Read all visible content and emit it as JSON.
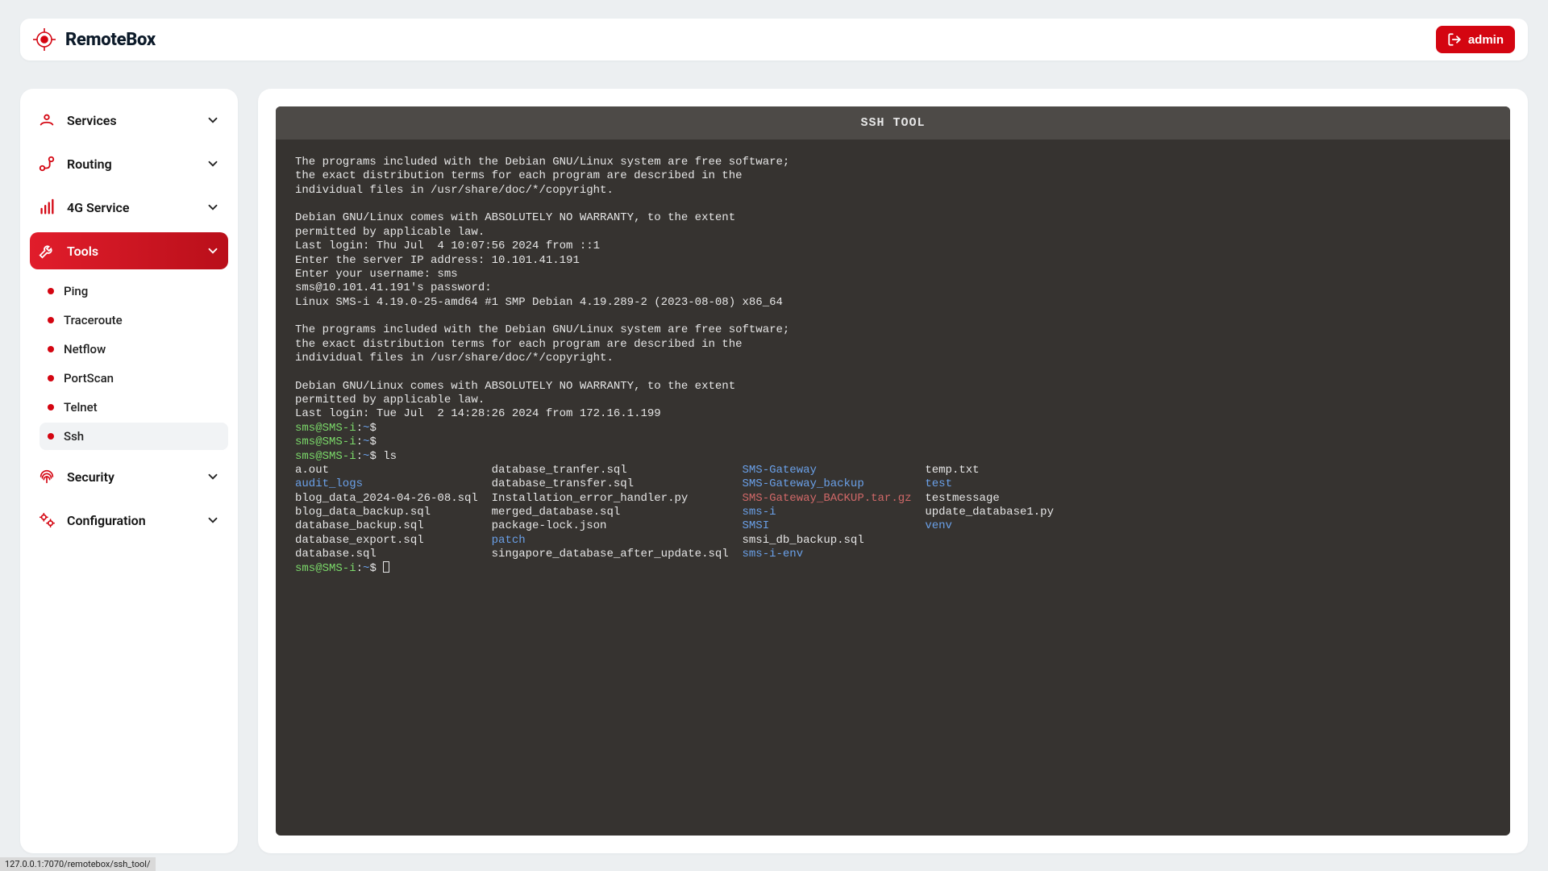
{
  "brand": {
    "name": "RemoteBox"
  },
  "header": {
    "admin_label": "admin"
  },
  "sidebar": {
    "items": [
      {
        "label": "Services"
      },
      {
        "label": "Routing"
      },
      {
        "label": "4G Service"
      },
      {
        "label": "Tools"
      },
      {
        "label": "Security"
      },
      {
        "label": "Configuration"
      }
    ],
    "tools_children": [
      {
        "label": "Ping"
      },
      {
        "label": "Traceroute"
      },
      {
        "label": "Netflow"
      },
      {
        "label": "PortScan"
      },
      {
        "label": "Telnet"
      },
      {
        "label": "Ssh"
      }
    ]
  },
  "terminal": {
    "title": "SSH TOOL",
    "lines": [
      [
        {
          "c": "default",
          "t": "The programs included with the Debian GNU/Linux system are free software;"
        }
      ],
      [
        {
          "c": "default",
          "t": "the exact distribution terms for each program are described in the"
        }
      ],
      [
        {
          "c": "default",
          "t": "individual files in /usr/share/doc/*/copyright."
        }
      ],
      [
        {
          "c": "default",
          "t": ""
        }
      ],
      [
        {
          "c": "default",
          "t": "Debian GNU/Linux comes with ABSOLUTELY NO WARRANTY, to the extent"
        }
      ],
      [
        {
          "c": "default",
          "t": "permitted by applicable law."
        }
      ],
      [
        {
          "c": "default",
          "t": "Last login: Thu Jul  4 10:07:56 2024 from ::1"
        }
      ],
      [
        {
          "c": "default",
          "t": "Enter the server IP address: 10.101.41.191"
        }
      ],
      [
        {
          "c": "default",
          "t": "Enter your username: sms"
        }
      ],
      [
        {
          "c": "default",
          "t": "sms@10.101.41.191's password:"
        }
      ],
      [
        {
          "c": "default",
          "t": "Linux SMS-i 4.19.0-25-amd64 #1 SMP Debian 4.19.289-2 (2023-08-08) x86_64"
        }
      ],
      [
        {
          "c": "default",
          "t": ""
        }
      ],
      [
        {
          "c": "default",
          "t": "The programs included with the Debian GNU/Linux system are free software;"
        }
      ],
      [
        {
          "c": "default",
          "t": "the exact distribution terms for each program are described in the"
        }
      ],
      [
        {
          "c": "default",
          "t": "individual files in /usr/share/doc/*/copyright."
        }
      ],
      [
        {
          "c": "default",
          "t": ""
        }
      ],
      [
        {
          "c": "default",
          "t": "Debian GNU/Linux comes with ABSOLUTELY NO WARRANTY, to the extent"
        }
      ],
      [
        {
          "c": "default",
          "t": "permitted by applicable law."
        }
      ],
      [
        {
          "c": "default",
          "t": "Last login: Tue Jul  2 14:28:26 2024 from 172.16.1.199"
        }
      ],
      [
        {
          "c": "green",
          "t": "sms@SMS-i"
        },
        {
          "c": "default",
          "t": ":"
        },
        {
          "c": "blue",
          "t": "~"
        },
        {
          "c": "default",
          "t": "$"
        }
      ],
      [
        {
          "c": "green",
          "t": "sms@SMS-i"
        },
        {
          "c": "default",
          "t": ":"
        },
        {
          "c": "blue",
          "t": "~"
        },
        {
          "c": "default",
          "t": "$"
        }
      ],
      [
        {
          "c": "green",
          "t": "sms@SMS-i"
        },
        {
          "c": "default",
          "t": ":"
        },
        {
          "c": "blue",
          "t": "~"
        },
        {
          "c": "default",
          "t": "$ ls"
        }
      ],
      [
        {
          "c": "default",
          "t": "a.out                        database_tranfer.sql                 "
        },
        {
          "c": "blue",
          "t": "SMS-Gateway"
        },
        {
          "c": "default",
          "t": "                temp.txt"
        }
      ],
      [
        {
          "c": "blue",
          "t": "audit_logs"
        },
        {
          "c": "default",
          "t": "                   database_transfer.sql                "
        },
        {
          "c": "blue",
          "t": "SMS-Gateway_backup"
        },
        {
          "c": "default",
          "t": "         "
        },
        {
          "c": "blue",
          "t": "test"
        }
      ],
      [
        {
          "c": "default",
          "t": "blog_data_2024-04-26-08.sql  Installation_error_handler.py        "
        },
        {
          "c": "red",
          "t": "SMS-Gateway_BACKUP.tar.gz"
        },
        {
          "c": "default",
          "t": "  testmessage"
        }
      ],
      [
        {
          "c": "default",
          "t": "blog_data_backup.sql         merged_database.sql                  "
        },
        {
          "c": "blue",
          "t": "sms-i"
        },
        {
          "c": "default",
          "t": "                      update_database1.py"
        }
      ],
      [
        {
          "c": "default",
          "t": "database_backup.sql          package-lock.json                    "
        },
        {
          "c": "blue",
          "t": "SMSI"
        },
        {
          "c": "default",
          "t": "                       "
        },
        {
          "c": "blue",
          "t": "venv"
        }
      ],
      [
        {
          "c": "default",
          "t": "database_export.sql          "
        },
        {
          "c": "blue",
          "t": "patch"
        },
        {
          "c": "default",
          "t": "                                smsi_db_backup.sql"
        }
      ],
      [
        {
          "c": "default",
          "t": "database.sql                 singapore_database_after_update.sql  "
        },
        {
          "c": "blue",
          "t": "sms-i-env"
        }
      ],
      [
        {
          "c": "green",
          "t": "sms@SMS-i"
        },
        {
          "c": "default",
          "t": ":"
        },
        {
          "c": "blue",
          "t": "~"
        },
        {
          "c": "default",
          "t": "$ "
        },
        {
          "c": "cursor",
          "t": ""
        }
      ]
    ]
  },
  "statusbar": {
    "text": "127.0.0.1:7070/remotebox/ssh_tool/"
  },
  "colors": {
    "page_bg": "#eceff1",
    "card_bg": "#ffffff",
    "accent": "#d40511",
    "accent_grad_a": "#e11d2b",
    "accent_grad_b": "#b90f1a",
    "term_bg": "#363330",
    "term_header_bg": "#4d4a47",
    "term_fg": "#e6e6e6",
    "term_green": "#7bd96a",
    "term_blue": "#6aa0e8",
    "term_red": "#d06868"
  }
}
